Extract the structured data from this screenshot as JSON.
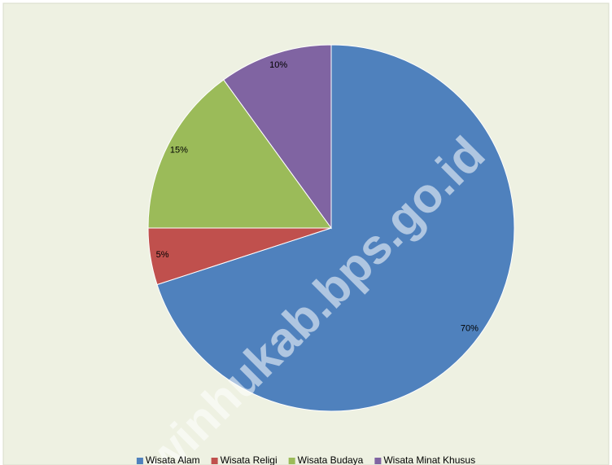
{
  "chart_data": {
    "type": "pie",
    "categories": [
      "Wisata Alam",
      "Wisata Religi",
      "Wisata Budaya",
      "Wisata Minat Khusus"
    ],
    "values": [
      70,
      5,
      15,
      10
    ],
    "value_labels": [
      "70%",
      "5%",
      "15%",
      "10%"
    ],
    "colors": [
      "#4f81bd",
      "#c0504d",
      "#9bbb59",
      "#8064a2"
    ],
    "legend": "bottom",
    "watermark": "winhukab.bps.go.id"
  }
}
